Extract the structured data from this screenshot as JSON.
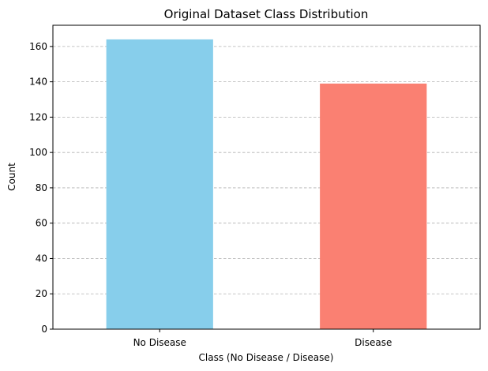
{
  "chart_data": {
    "type": "bar",
    "title": "Original Dataset Class Distribution",
    "xlabel": "Class (No Disease / Disease)",
    "ylabel": "Count",
    "categories": [
      "No Disease",
      "Disease"
    ],
    "values": [
      164,
      139
    ],
    "colors": [
      "#87ceeb",
      "#fa8072"
    ],
    "ylim": [
      0,
      172
    ],
    "yticks": [
      0,
      20,
      40,
      60,
      80,
      100,
      120,
      140,
      160
    ],
    "grid": {
      "axis": "y",
      "style": "dashed",
      "color": "#b0b0b0"
    },
    "legend": null
  }
}
